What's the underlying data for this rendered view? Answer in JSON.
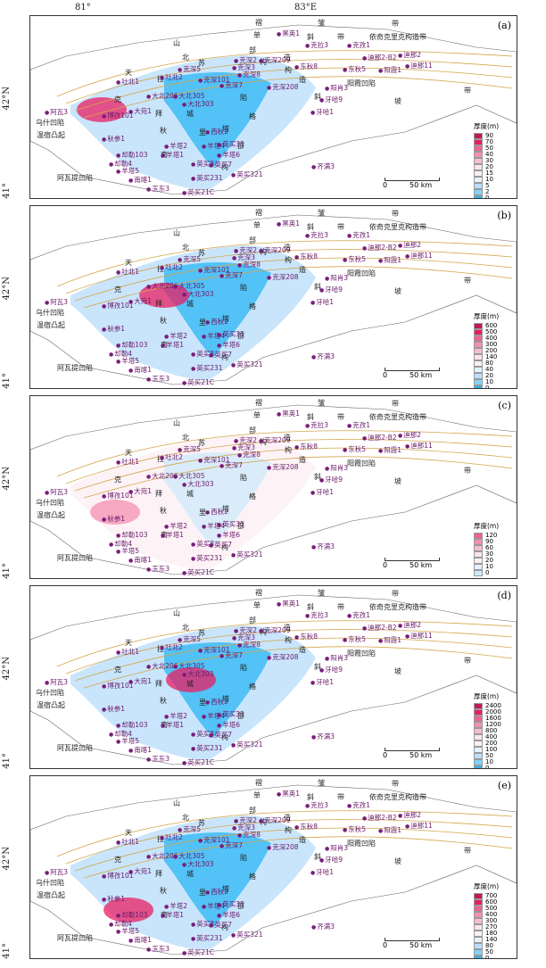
{
  "axes": {
    "top_left_lon": "81°",
    "top_right_lon": "83°E",
    "lat_top": "42°N",
    "lat_bottom": "41°"
  },
  "regions": {
    "r1": "褶",
    "r2": "皱",
    "r3": "带",
    "r4": "单",
    "r5": "斜",
    "r6": "带",
    "r7": "山",
    "r8": "北",
    "r9": "部",
    "r10": "构",
    "r11": "造",
    "r12": "带",
    "r13": "天",
    "r14": "拉",
    "r15": "苏",
    "r16": "构",
    "r17": "造",
    "r18": "克",
    "r19": "拜",
    "r20": "城",
    "r21": "陷",
    "r22": "格",
    "r23": "秋",
    "r24": "里",
    "r25": "塔",
    "r26": "南",
    "r27": "部",
    "r28": "构",
    "yiqi": "依奇克里克构造带",
    "yangxia": "阳霞凹陷",
    "xie": "斜",
    "po": "坡",
    "wensu": "温宿凸起",
    "wushi": "乌什凹陷",
    "awati": "阿瓦提凹陷"
  },
  "wells": [
    "黑英1",
    "克拉3",
    "克孜1",
    "迪那2-B2",
    "迪那2",
    "迪那11",
    "东秋5",
    "东秋8",
    "克深209",
    "克深3",
    "克深2",
    "克深8",
    "克深5",
    "克深101",
    "克深7",
    "克深208",
    "吐北1",
    "吐北2",
    "大北206",
    "大北305",
    "大北303",
    "大宛1",
    "博孜101",
    "阿瓦3",
    "秋参1",
    "却勒103",
    "却勒4",
    "羊塔5",
    "羊塔1",
    "羊塔2",
    "羊塔4",
    "南喀1",
    "玉东3",
    "西秋2",
    "英买35",
    "英买8",
    "英买7",
    "英买321",
    "英买231",
    "英买21C",
    "羊塔6",
    "阳霞1",
    "牙哈9",
    "牙哈1",
    "阳肖3",
    "齐满3"
  ],
  "scale": {
    "zero": "0",
    "label": "50 km"
  },
  "panels": [
    {
      "letter": "(a)",
      "legend_title": "厚度(m)",
      "legend": [
        "90",
        "70",
        "50",
        "40",
        "30",
        "20",
        "15",
        "10",
        "5",
        "2",
        "0"
      ],
      "colors": [
        "#c2185b",
        "#e91e63",
        "#f06292",
        "#f48fb1",
        "#f8bbd0",
        "#fce4ec",
        "#fdf0f5",
        "#e3f2fd",
        "#bbdefb",
        "#81d4fa",
        "#29b6f6"
      ]
    },
    {
      "letter": "(b)",
      "legend_title": "厚度(m)",
      "legend": [
        "600",
        "500",
        "400",
        "300",
        "200",
        "140",
        "80",
        "40",
        "20",
        "10",
        "0"
      ],
      "colors": [
        "#c2185b",
        "#e91e63",
        "#f06292",
        "#f48fb1",
        "#f8bbd0",
        "#fce4ec",
        "#fdf0f5",
        "#e3f2fd",
        "#bbdefb",
        "#81d4fa",
        "#29b6f6"
      ]
    },
    {
      "letter": "(c)",
      "legend_title": "厚度(m)",
      "legend": [
        "120",
        "90",
        "60",
        "30",
        "20",
        "10",
        "0"
      ],
      "colors": [
        "#f06292",
        "#f48fb1",
        "#f8bbd0",
        "#fce4ec",
        "#fdf0f5",
        "#e3f2fd",
        "#cde9fb"
      ]
    },
    {
      "letter": "(d)",
      "legend_title": "厚度(m)",
      "legend": [
        "2400",
        "2000",
        "1600",
        "1200",
        "800",
        "400",
        "200",
        "100",
        "50",
        "10",
        "0"
      ],
      "colors": [
        "#c2185b",
        "#e91e63",
        "#f06292",
        "#f48fb1",
        "#f8bbd0",
        "#fce4ec",
        "#fdf0f5",
        "#e3f2fd",
        "#bbdefb",
        "#81d4fa",
        "#29b6f6"
      ]
    },
    {
      "letter": "(e)",
      "legend_title": "厚度(m)",
      "legend": [
        "700",
        "600",
        "500",
        "400",
        "300",
        "270",
        "180",
        "140",
        "80",
        "50",
        "0"
      ],
      "colors": [
        "#c2185b",
        "#e91e63",
        "#f06292",
        "#f48fb1",
        "#f8bbd0",
        "#fce4ec",
        "#fdf0f5",
        "#e3f2fd",
        "#bbdefb",
        "#81d4fa",
        "#29b6f6"
      ]
    }
  ]
}
